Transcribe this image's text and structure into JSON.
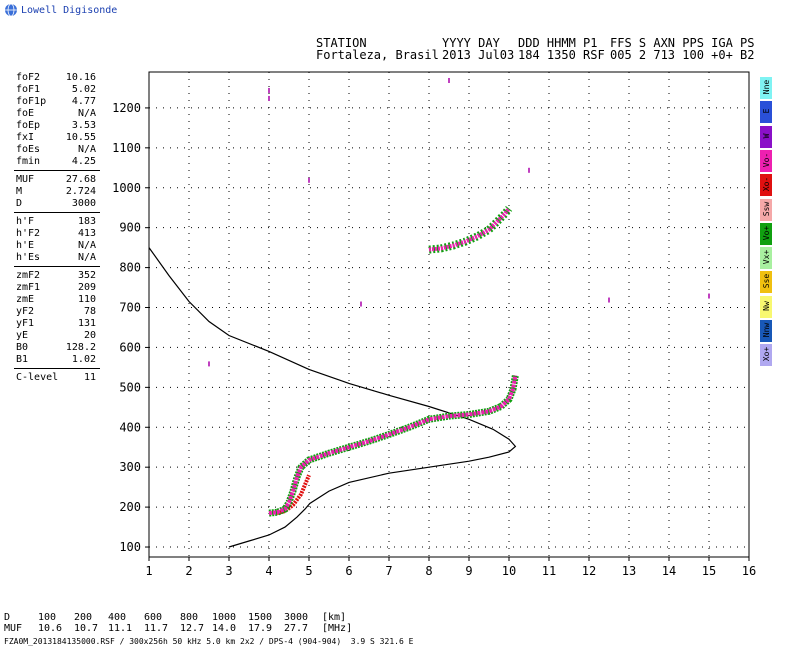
{
  "logo": {
    "text": "Lowell Digisonde",
    "icon": "globe-icon"
  },
  "header": {
    "line1": [
      "STATION",
      "YYYY DAY",
      "DDD HHMM P1",
      "FFS S AXN PPS IGA PS"
    ],
    "line2": [
      "Fortaleza, Brasil",
      "2013 Jul03",
      "184 1350 RSF",
      "005 2 713 100 +0+ B2"
    ]
  },
  "params": [
    {
      "name": "foF2",
      "value": "10.16"
    },
    {
      "name": "foF1",
      "value": "5.02"
    },
    {
      "name": "foF1p",
      "value": "4.77"
    },
    {
      "name": "foE",
      "value": "N/A"
    },
    {
      "name": "foEp",
      "value": "3.53"
    },
    {
      "name": "fxI",
      "value": "10.55"
    },
    {
      "name": "foEs",
      "value": "N/A"
    },
    {
      "name": "fmin",
      "value": "4.25"
    },
    {
      "name": "MUF",
      "value": "27.68"
    },
    {
      "name": "M",
      "value": "2.724"
    },
    {
      "name": "D",
      "value": "3000"
    },
    {
      "name": "h'F",
      "value": "183"
    },
    {
      "name": "h'F2",
      "value": "413"
    },
    {
      "name": "h'E",
      "value": "N/A"
    },
    {
      "name": "h'Es",
      "value": "N/A"
    },
    {
      "name": "zmF2",
      "value": "352"
    },
    {
      "name": "zmF1",
      "value": "209"
    },
    {
      "name": "zmE",
      "value": "110"
    },
    {
      "name": "yF2",
      "value": "78"
    },
    {
      "name": "yF1",
      "value": "131"
    },
    {
      "name": "yE",
      "value": "20"
    },
    {
      "name": "B0",
      "value": "128.2"
    },
    {
      "name": "B1",
      "value": "1.02"
    },
    {
      "name": "C-level",
      "value": "11"
    }
  ],
  "legend": [
    {
      "label": "Nne",
      "color": "#7ff3f3"
    },
    {
      "label": "E",
      "color": "#2a50d8"
    },
    {
      "label": "W",
      "color": "#8a10c8"
    },
    {
      "label": "Vo-",
      "color": "#ee20b0"
    },
    {
      "label": "Xo-",
      "color": "#e01010"
    },
    {
      "label": "Ssw",
      "color": "#f5a8a8"
    },
    {
      "label": "Vo+",
      "color": "#10a010"
    },
    {
      "label": "Vx+",
      "color": "#a8f0a0"
    },
    {
      "label": "Sse",
      "color": "#f0c010"
    },
    {
      "label": "Nw",
      "color": "#f8f870"
    },
    {
      "label": "Nnw",
      "color": "#1858b8"
    },
    {
      "label": "Xo+",
      "color": "#b0a8f0"
    }
  ],
  "footer": {
    "d_row": [
      "D",
      "100",
      "200",
      "400",
      "600",
      "800",
      "1000",
      "1500",
      "3000",
      "[km]"
    ],
    "muf_row": [
      "MUF",
      "10.6",
      "10.7",
      "11.1",
      "11.7",
      "12.7",
      "14.0",
      "17.9",
      "27.7",
      "[MHz]"
    ],
    "file_info": "FZA0M_2013184135000.RSF / 300x256h 50 kHz 5.0 km 2x2 / DPS-4 (904-904)  3.9 S 321.6 E"
  },
  "chart_data": {
    "type": "scatter",
    "xlim": [
      1,
      16
    ],
    "ylim": [
      75,
      1290
    ],
    "xticks": [
      1,
      2,
      3,
      4,
      5,
      6,
      7,
      8,
      9,
      10,
      11,
      12,
      13,
      14,
      15,
      16
    ],
    "yticks": [
      100,
      200,
      300,
      400,
      500,
      600,
      700,
      800,
      900,
      1000,
      1100,
      1200
    ],
    "grid": true,
    "colors": {
      "o_trace_core": "#ee20b0",
      "o_trace_edge": "#10a010",
      "x_trace": "#e01010",
      "profile": "#000000"
    },
    "o_trace": [
      [
        4.0,
        185
      ],
      [
        4.2,
        187
      ],
      [
        4.4,
        195
      ],
      [
        4.5,
        212
      ],
      [
        4.6,
        240
      ],
      [
        4.7,
        275
      ],
      [
        4.8,
        300
      ],
      [
        5.0,
        318
      ],
      [
        5.5,
        335
      ],
      [
        6.0,
        350
      ],
      [
        6.5,
        365
      ],
      [
        7.0,
        382
      ],
      [
        7.5,
        400
      ],
      [
        8.0,
        420
      ],
      [
        8.5,
        428
      ],
      [
        9.0,
        432
      ],
      [
        9.5,
        440
      ],
      [
        9.8,
        452
      ],
      [
        10.0,
        470
      ],
      [
        10.1,
        495
      ],
      [
        10.16,
        530
      ]
    ],
    "x_trace": [
      [
        4.2,
        185
      ],
      [
        4.4,
        190
      ],
      [
        4.6,
        205
      ],
      [
        4.8,
        232
      ],
      [
        5.0,
        280
      ]
    ],
    "upper_trace": [
      [
        8.0,
        845
      ],
      [
        8.3,
        848
      ],
      [
        8.6,
        855
      ],
      [
        8.9,
        865
      ],
      [
        9.2,
        878
      ],
      [
        9.5,
        895
      ],
      [
        9.7,
        915
      ],
      [
        9.9,
        935
      ],
      [
        10.0,
        948
      ]
    ],
    "profile": [
      [
        1.0,
        850
      ],
      [
        1.5,
        780
      ],
      [
        2.0,
        715
      ],
      [
        2.5,
        665
      ],
      [
        3.0,
        630
      ],
      [
        4.0,
        590
      ],
      [
        5.0,
        545
      ],
      [
        6.0,
        510
      ],
      [
        7.0,
        480
      ],
      [
        8.0,
        452
      ],
      [
        9.0,
        420
      ],
      [
        9.6,
        395
      ],
      [
        10.0,
        370
      ],
      [
        10.16,
        352
      ],
      [
        10.0,
        338
      ],
      [
        9.5,
        325
      ],
      [
        9.0,
        315
      ],
      [
        8.0,
        300
      ],
      [
        7.0,
        285
      ],
      [
        6.0,
        262
      ],
      [
        5.5,
        240
      ],
      [
        5.02,
        209
      ],
      [
        4.9,
        195
      ],
      [
        4.7,
        175
      ],
      [
        4.4,
        150
      ],
      [
        4.0,
        130
      ],
      [
        3.5,
        115
      ],
      [
        3.0,
        100
      ]
    ],
    "sparse_dots": [
      [
        2.5,
        560
      ],
      [
        4.0,
        1245
      ],
      [
        4.0,
        1225
      ],
      [
        5.0,
        1020
      ],
      [
        6.3,
        710
      ],
      [
        8.5,
        1270
      ],
      [
        10.5,
        1045
      ],
      [
        12.5,
        720
      ],
      [
        15.0,
        730
      ]
    ]
  }
}
